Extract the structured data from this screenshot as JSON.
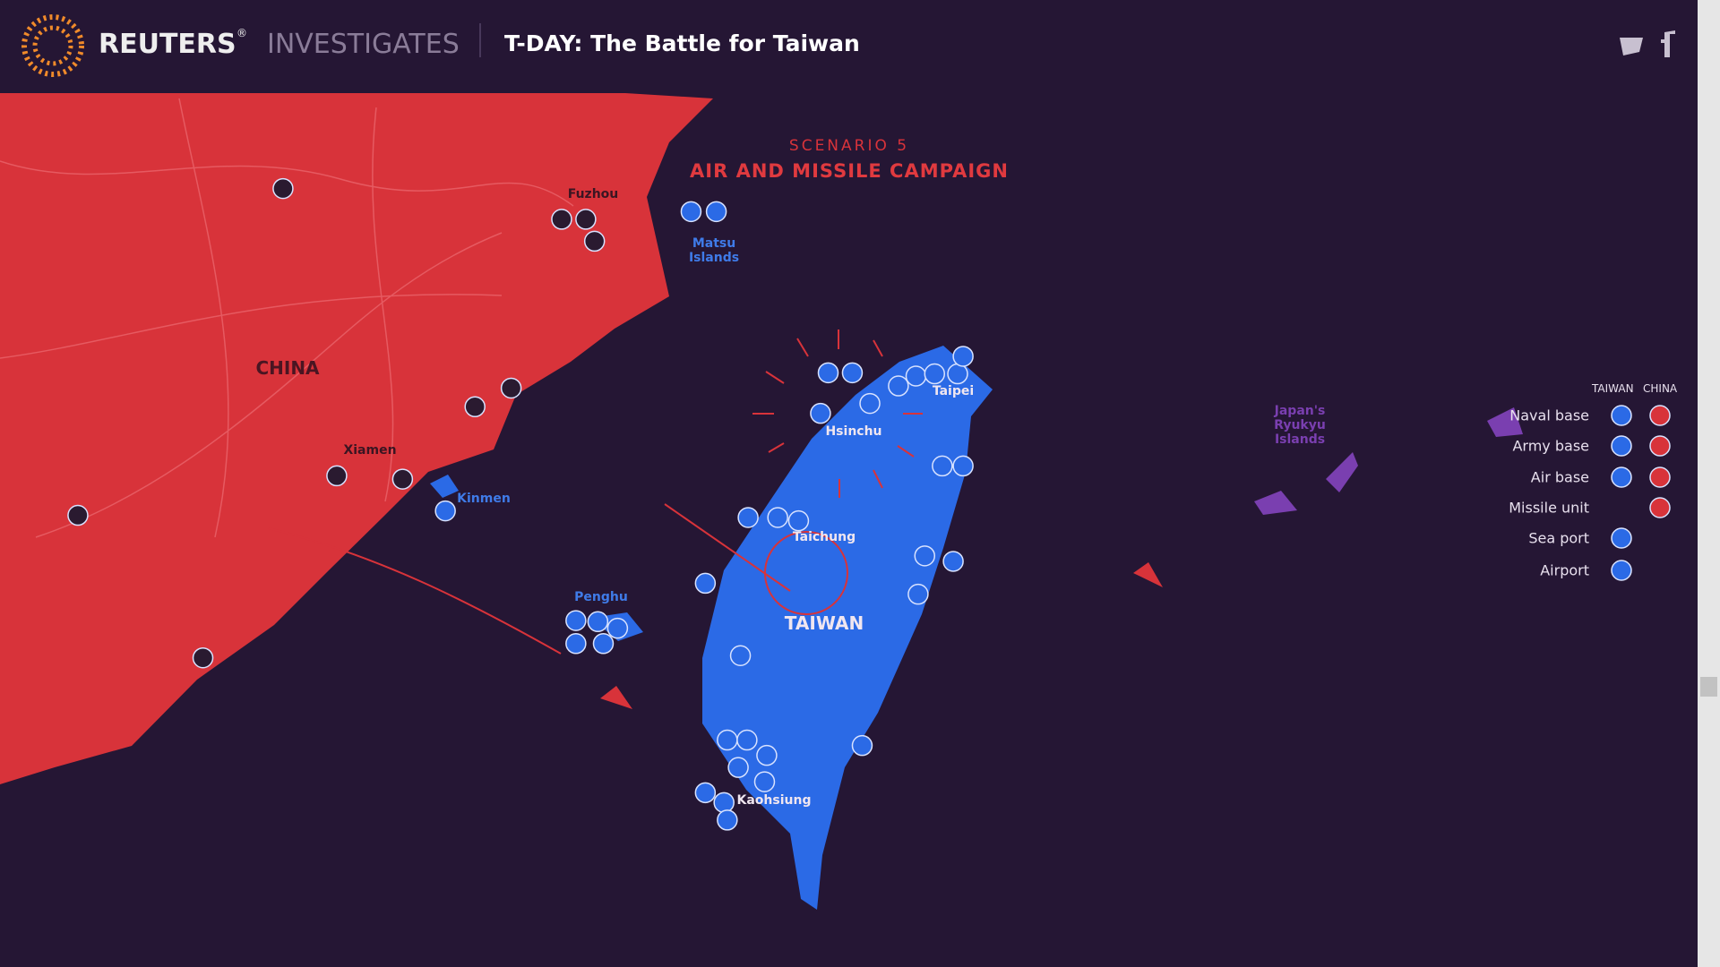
{
  "header": {
    "brand": "REUTERS",
    "registered": "®",
    "section": "INVESTIGATES",
    "title": "T-DAY: The Battle for Taiwan"
  },
  "map": {
    "scenario": "SCENARIO 5",
    "heading": "AIR AND MISSILE CAMPAIGN",
    "labels": {
      "china": "CHINA",
      "fuzhou": "Fuzhou",
      "xiamen": "Xiamen",
      "matsu": "Matsu Islands",
      "kinmen": "Kinmen",
      "penghu": "Penghu",
      "hsinchu": "Hsinchu",
      "taipei": "Taipei",
      "taichung": "Taichung",
      "taiwan": "TAIWAN",
      "kaohsiung": "Kaohsiung",
      "ryukyu": "Japan's Ryukyu Islands"
    }
  },
  "legend": {
    "columns": [
      "TAIWAN",
      "CHINA"
    ],
    "items": [
      "Naval base",
      "Army base",
      "Air base",
      "Missile unit",
      "Sea port",
      "Airport"
    ]
  }
}
